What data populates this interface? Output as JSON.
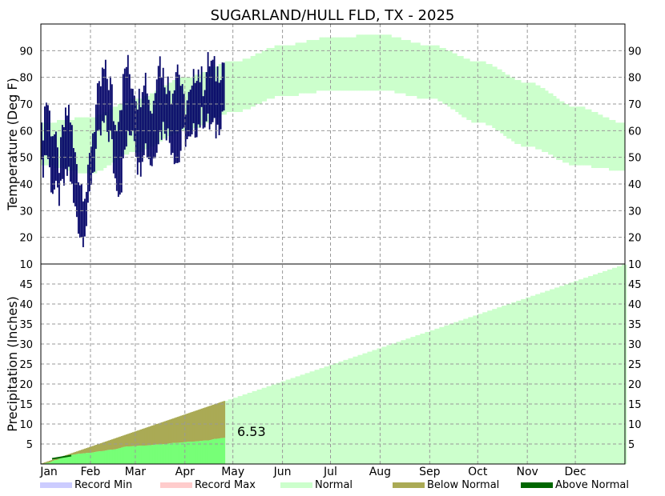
{
  "chart_data": {
    "title": "SUGARLAND/HULL FLD, TX - 2025",
    "months": [
      "Jan",
      "Feb",
      "Mar",
      "Apr",
      "May",
      "Jun",
      "Jul",
      "Aug",
      "Sep",
      "Oct",
      "Nov",
      "Dec"
    ],
    "temperature": {
      "type": "bar",
      "ylabel": "Temperature (Deg F)",
      "ylim": [
        10,
        100
      ],
      "yticks_left": [
        "90",
        "80",
        "70",
        "60",
        "50",
        "40",
        "30",
        "20",
        "10"
      ],
      "yticks_right": [
        "90",
        "80",
        "70",
        "60",
        "50",
        "40",
        "30",
        "20",
        "10"
      ],
      "normal_low_anchors": [
        [
          1,
          47
        ],
        [
          31,
          44
        ],
        [
          60,
          52
        ],
        [
          91,
          60
        ],
        [
          121,
          67
        ],
        [
          152,
          73
        ],
        [
          182,
          75
        ],
        [
          213,
          75
        ],
        [
          244,
          72
        ],
        [
          274,
          63
        ],
        [
          305,
          54
        ],
        [
          335,
          47
        ],
        [
          365,
          45
        ]
      ],
      "normal_high_anchors": [
        [
          1,
          63
        ],
        [
          31,
          65
        ],
        [
          60,
          72
        ],
        [
          91,
          80
        ],
        [
          121,
          86
        ],
        [
          152,
          92
        ],
        [
          182,
          95
        ],
        [
          213,
          96
        ],
        [
          244,
          92
        ],
        [
          274,
          86
        ],
        [
          305,
          78
        ],
        [
          335,
          69
        ],
        [
          365,
          63
        ]
      ],
      "observed_last_day": 115,
      "observed_high_anchors": [
        [
          1,
          58
        ],
        [
          4,
          72
        ],
        [
          8,
          60
        ],
        [
          12,
          48
        ],
        [
          15,
          62
        ],
        [
          18,
          68
        ],
        [
          22,
          50
        ],
        [
          26,
          40
        ],
        [
          29,
          38
        ],
        [
          33,
          60
        ],
        [
          36,
          72
        ],
        [
          40,
          82
        ],
        [
          44,
          78
        ],
        [
          47,
          62
        ],
        [
          50,
          70
        ],
        [
          54,
          85
        ],
        [
          58,
          78
        ],
        [
          62,
          72
        ],
        [
          65,
          82
        ],
        [
          70,
          68
        ],
        [
          74,
          88
        ],
        [
          78,
          80
        ],
        [
          82,
          75
        ],
        [
          86,
          85
        ],
        [
          90,
          70
        ],
        [
          94,
          72
        ],
        [
          98,
          84
        ],
        [
          102,
          78
        ],
        [
          106,
          86
        ],
        [
          110,
          82
        ],
        [
          115,
          86
        ]
      ],
      "observed_low_anchors": [
        [
          1,
          45
        ],
        [
          4,
          52
        ],
        [
          8,
          38
        ],
        [
          12,
          35
        ],
        [
          15,
          40
        ],
        [
          18,
          45
        ],
        [
          22,
          30
        ],
        [
          26,
          20
        ],
        [
          29,
          25
        ],
        [
          33,
          45
        ],
        [
          36,
          55
        ],
        [
          40,
          62
        ],
        [
          44,
          58
        ],
        [
          47,
          42
        ],
        [
          50,
          38
        ],
        [
          54,
          55
        ],
        [
          58,
          62
        ],
        [
          62,
          45
        ],
        [
          65,
          55
        ],
        [
          70,
          48
        ],
        [
          74,
          58
        ],
        [
          78,
          62
        ],
        [
          82,
          55
        ],
        [
          86,
          48
        ],
        [
          90,
          58
        ],
        [
          94,
          55
        ],
        [
          98,
          62
        ],
        [
          102,
          65
        ],
        [
          106,
          62
        ],
        [
          110,
          60
        ],
        [
          115,
          68
        ]
      ]
    },
    "precipitation": {
      "type": "area",
      "ylabel": "Precipitation (Inches)",
      "ylim": [
        0,
        50
      ],
      "yticks_left": [
        "45",
        "40",
        "35",
        "30",
        "25",
        "20",
        "15",
        "10",
        "5"
      ],
      "yticks_right": [
        "45",
        "40",
        "35",
        "30",
        "25",
        "20",
        "15",
        "10",
        "5"
      ],
      "normal_annual_total": 50,
      "observed_last_day": 115,
      "observed_anchors": [
        [
          1,
          0
        ],
        [
          5,
          0.3
        ],
        [
          10,
          1
        ],
        [
          15,
          1.8
        ],
        [
          20,
          2.3
        ],
        [
          25,
          2.6
        ],
        [
          31,
          2.8
        ],
        [
          38,
          3.2
        ],
        [
          45,
          3.6
        ],
        [
          55,
          4.4
        ],
        [
          65,
          4.6
        ],
        [
          75,
          4.9
        ],
        [
          85,
          5.3
        ],
        [
          95,
          5.6
        ],
        [
          105,
          5.9
        ],
        [
          110,
          6.3
        ],
        [
          115,
          6.53
        ]
      ],
      "ytd_total_label": "6.53"
    },
    "legend": [
      {
        "label": "Record Min",
        "color": "#ccccff"
      },
      {
        "label": "Record Max",
        "color": "#ffcccc"
      },
      {
        "label": "Normal",
        "color": "#ccffcc"
      },
      {
        "label": "Below Normal",
        "color": "#aaaa55"
      },
      {
        "label": "Above Normal",
        "color": "#006600"
      }
    ],
    "colors": {
      "normal": "#ccffcc",
      "observed_temp": "#000066",
      "observed_precip": "#77ff77",
      "below_normal": "#aaaa55",
      "above_normal": "#006600",
      "grid": "#999999"
    }
  }
}
